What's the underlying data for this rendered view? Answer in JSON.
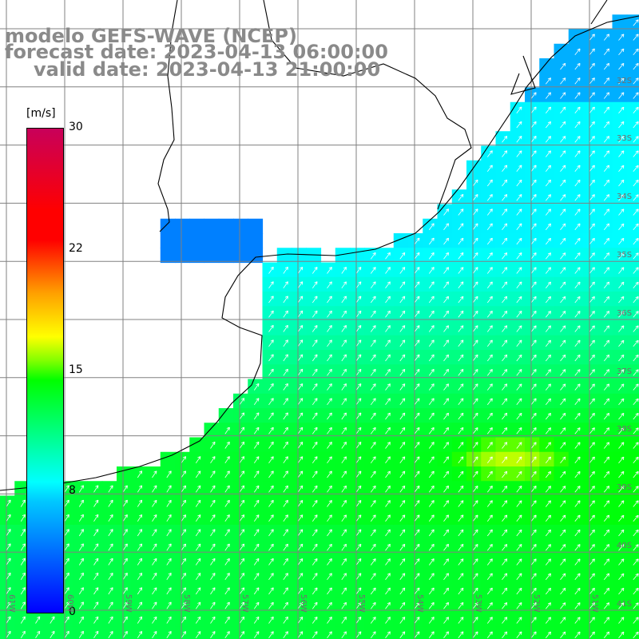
{
  "title": {
    "line1": "modelo GEFS-WAVE (NCEP)",
    "line2": "forecast date: 2023-04-13 06:00:00",
    "line3": "valid date: 2023-04-13 21:00:00"
  },
  "colorbar": {
    "units": "[m/s]",
    "ticks": [
      "30",
      "22",
      "15",
      "8",
      "0"
    ],
    "min": 0,
    "max": 30,
    "colors": [
      "#0000ff",
      "#00ffff",
      "#00ff00",
      "#ffff00",
      "#ff0000",
      "#c8005a"
    ]
  },
  "lat_labels": [
    "32S",
    "33S",
    "34S",
    "35S",
    "36S",
    "37S",
    "38S",
    "39S",
    "40S",
    "41S"
  ],
  "lon_labels": [
    "61W",
    "60W",
    "59W",
    "58W",
    "57W",
    "56W",
    "55W",
    "54W",
    "53W",
    "52W",
    "51W"
  ],
  "colors": {
    "land": "#ffffff",
    "grid": "#808080",
    "coast": "#000000",
    "arrows": "#ffffff",
    "title": "#8a8a8a"
  }
}
